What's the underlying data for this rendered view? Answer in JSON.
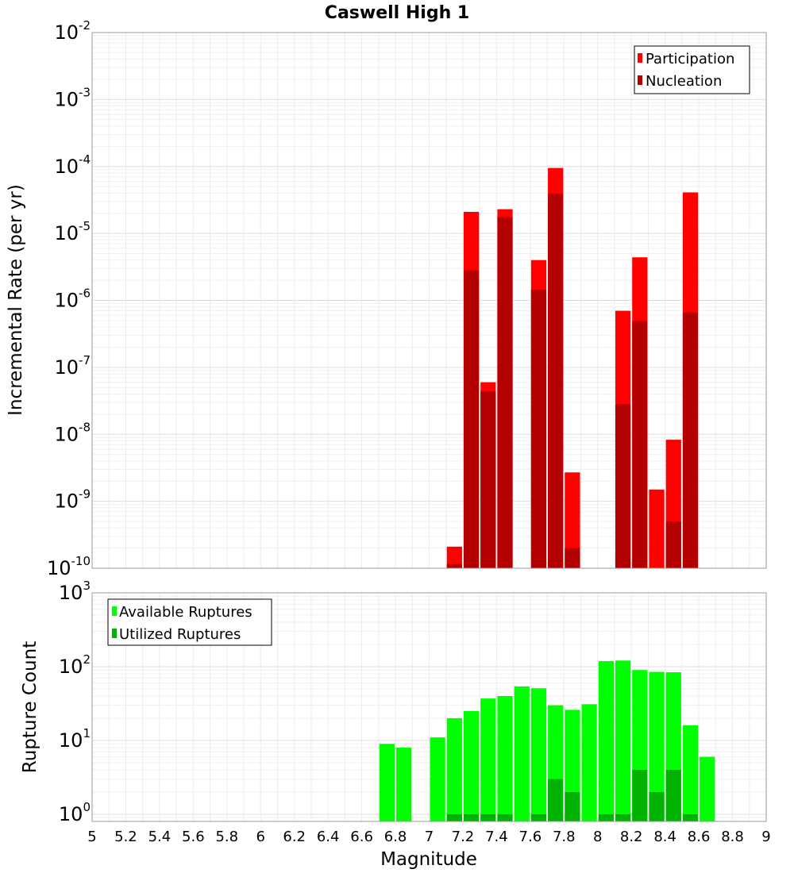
{
  "chart_data": {
    "type": "bar",
    "title": "Caswell High 1",
    "xlabel": "Magnitude",
    "xlim": [
      5,
      9
    ],
    "x_ticks": [
      "5",
      "5.2",
      "5.4",
      "5.6",
      "5.8",
      "6",
      "6.2",
      "6.4",
      "6.6",
      "6.8",
      "7",
      "7.2",
      "7.4",
      "7.6",
      "7.8",
      "8",
      "8.2",
      "8.4",
      "8.6",
      "8.8",
      "9"
    ],
    "panels": [
      {
        "ylabel": "Incremental Rate (per yr)",
        "yscale": "log",
        "ylim": [
          1e-10,
          0.01
        ],
        "y_ticks": [
          {
            "base": "10",
            "exp": "-10"
          },
          {
            "base": "10",
            "exp": "-9"
          },
          {
            "base": "10",
            "exp": "-8"
          },
          {
            "base": "10",
            "exp": "-7"
          },
          {
            "base": "10",
            "exp": "-6"
          },
          {
            "base": "10",
            "exp": "-5"
          },
          {
            "base": "10",
            "exp": "-4"
          },
          {
            "base": "10",
            "exp": "-3"
          },
          {
            "base": "10",
            "exp": "-2"
          }
        ],
        "grid": true,
        "legend_position": "top-right",
        "series": [
          {
            "name": "Participation",
            "color": "#ff0000",
            "points": [
              [
                7.1,
                2.1e-10
              ],
              [
                7.2,
                2.1e-05
              ],
              [
                7.3,
                6e-08
              ],
              [
                7.4,
                2.3e-05
              ],
              [
                7.6,
                4e-06
              ],
              [
                7.7,
                9.5e-05
              ],
              [
                7.8,
                2.7e-09
              ],
              [
                8.1,
                7e-07
              ],
              [
                8.2,
                4.4e-06
              ],
              [
                8.3,
                1.5e-09
              ],
              [
                8.4,
                8.3e-09
              ],
              [
                8.5,
                4.1e-05
              ]
            ]
          },
          {
            "name": "Nucleation",
            "color": "#b30000",
            "points": [
              [
                7.1,
                1.15e-10
              ],
              [
                7.2,
                2.8e-06
              ],
              [
                7.3,
                4.4e-08
              ],
              [
                7.4,
                1.75e-05
              ],
              [
                7.6,
                1.45e-06
              ],
              [
                7.7,
                3.9e-05
              ],
              [
                7.8,
                2e-10
              ],
              [
                8.1,
                2.8e-08
              ],
              [
                8.2,
                4.9e-07
              ],
              [
                8.4,
                5e-10
              ],
              [
                8.5,
                6.6e-07
              ]
            ]
          }
        ]
      },
      {
        "ylabel": "Rupture Count",
        "yscale": "log",
        "ylim": [
          0.8,
          1000
        ],
        "y_ticks": [
          {
            "base": "10",
            "exp": "0"
          },
          {
            "base": "10",
            "exp": "1"
          },
          {
            "base": "10",
            "exp": "2"
          },
          {
            "base": "10",
            "exp": "3"
          }
        ],
        "grid": true,
        "legend_position": "top-left",
        "series": [
          {
            "name": "Available Ruptures",
            "color": "#00ff00",
            "points": [
              [
                6.7,
                9
              ],
              [
                6.8,
                8
              ],
              [
                7.0,
                11
              ],
              [
                7.1,
                20
              ],
              [
                7.2,
                25
              ],
              [
                7.3,
                37
              ],
              [
                7.4,
                40
              ],
              [
                7.5,
                54
              ],
              [
                7.6,
                51
              ],
              [
                7.7,
                30
              ],
              [
                7.8,
                26
              ],
              [
                7.9,
                31
              ],
              [
                8.0,
                119
              ],
              [
                8.1,
                121
              ],
              [
                8.2,
                90
              ],
              [
                8.3,
                85
              ],
              [
                8.4,
                84
              ],
              [
                8.5,
                16
              ],
              [
                8.6,
                6
              ]
            ]
          },
          {
            "name": "Utilized Ruptures",
            "color": "#00b300",
            "points": [
              [
                7.1,
                1
              ],
              [
                7.2,
                1
              ],
              [
                7.3,
                1
              ],
              [
                7.4,
                1
              ],
              [
                7.6,
                1
              ],
              [
                7.7,
                3
              ],
              [
                7.8,
                2
              ],
              [
                8.0,
                1
              ],
              [
                8.1,
                1
              ],
              [
                8.2,
                4
              ],
              [
                8.3,
                2
              ],
              [
                8.4,
                4
              ],
              [
                8.5,
                1
              ]
            ]
          }
        ]
      }
    ]
  }
}
